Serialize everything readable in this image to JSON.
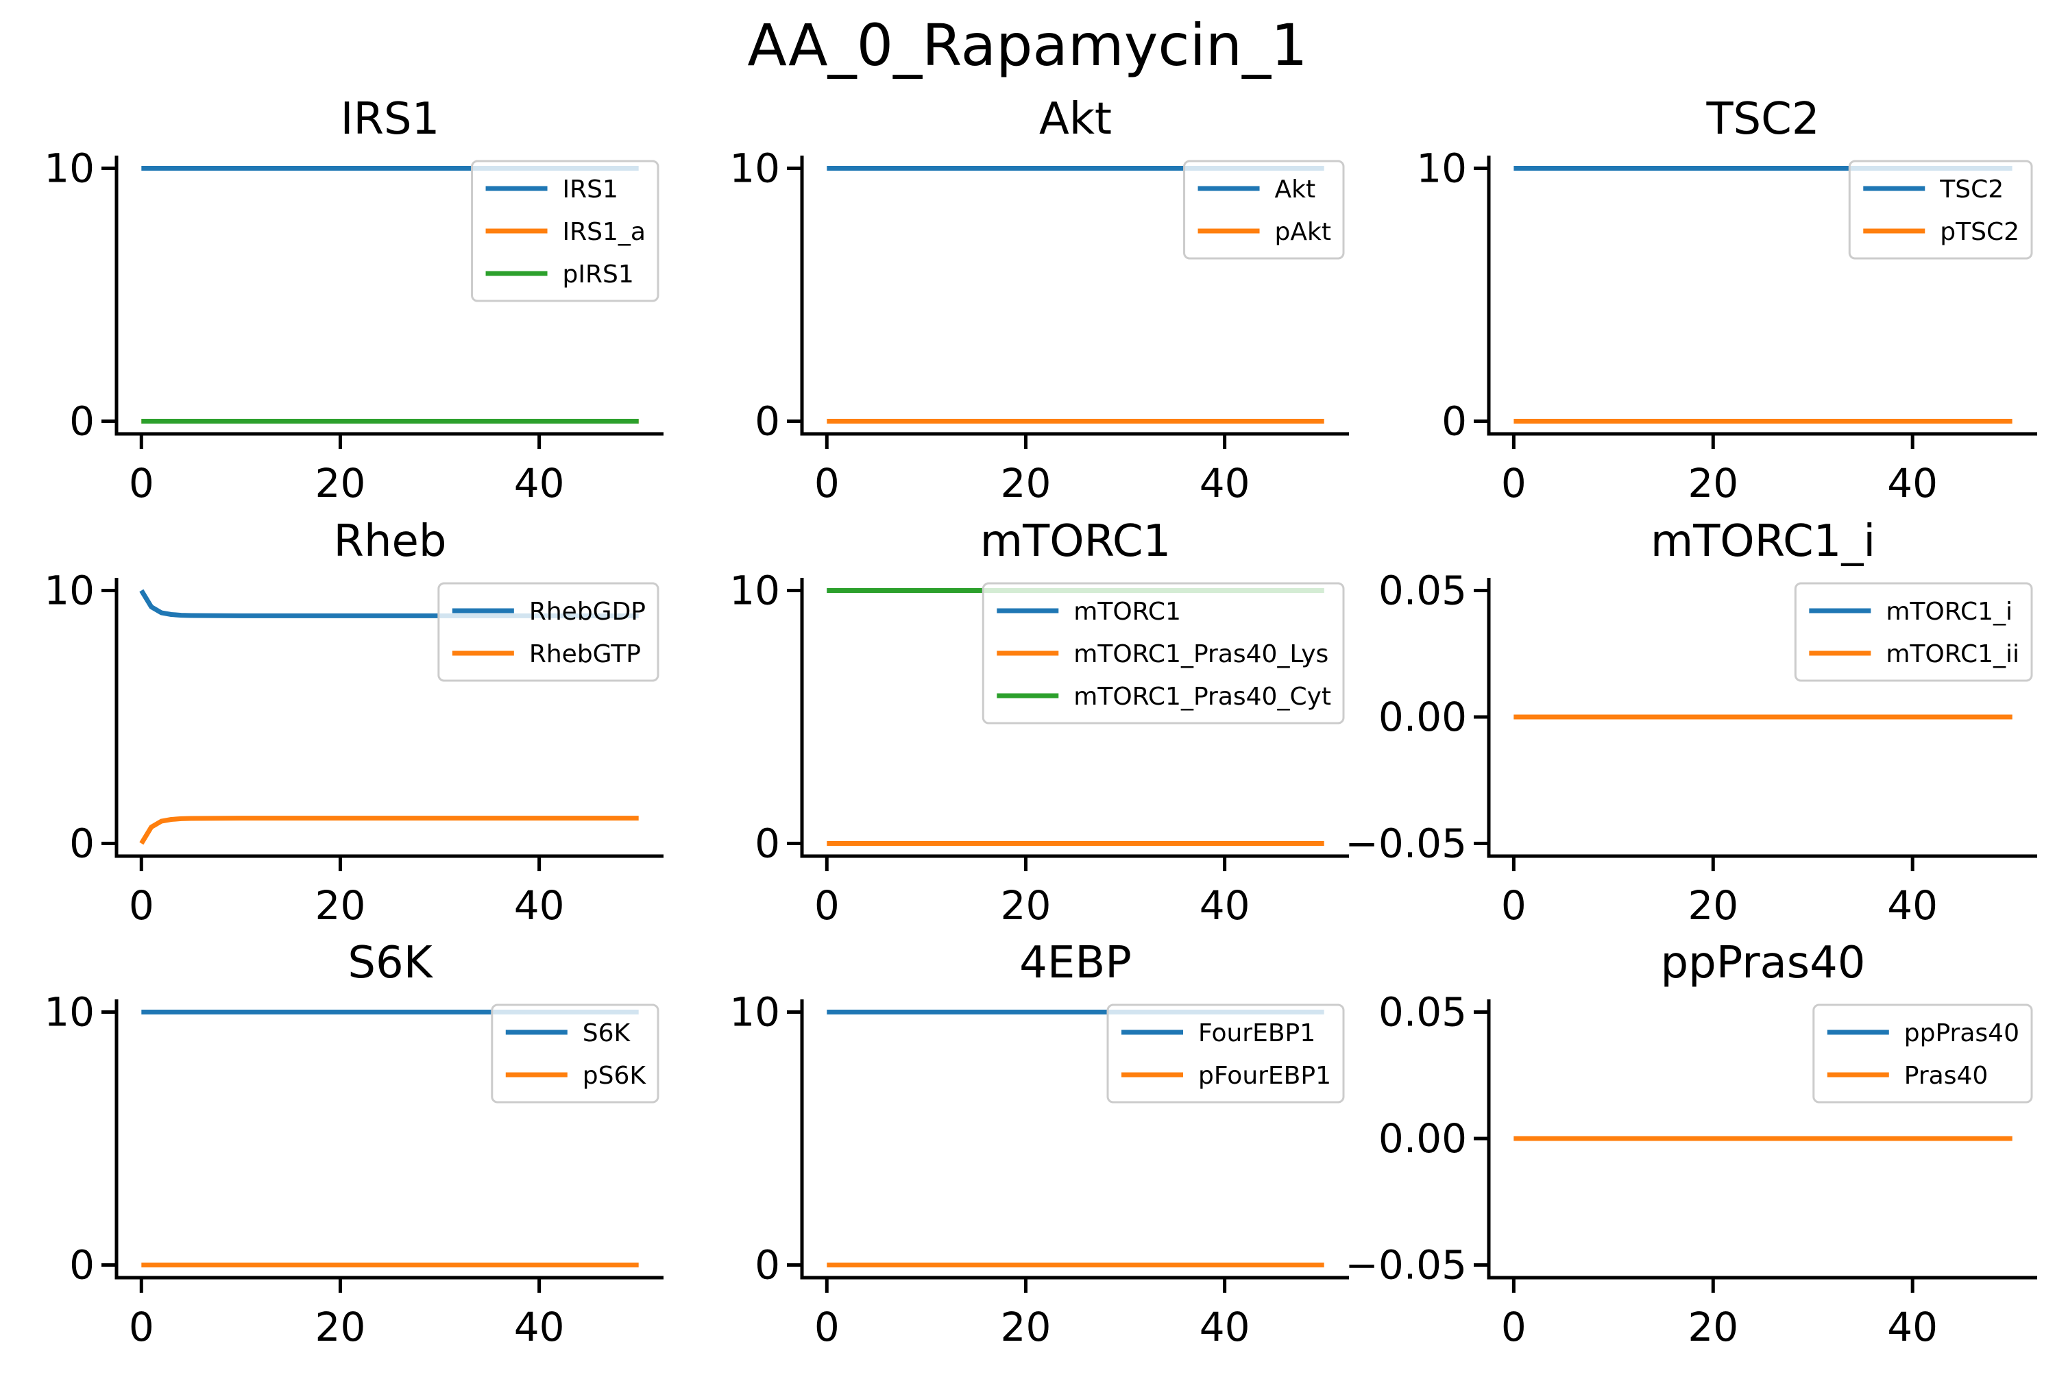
{
  "figure": {
    "suptitle": "AA_0_Rapamycin_1"
  },
  "colors": {
    "c0": "#1f77b4",
    "c1": "#ff7f0e",
    "c2": "#2ca02c"
  },
  "chart_data": [
    {
      "type": "line",
      "title": "IRS1",
      "xlabel": "",
      "ylabel": "",
      "xlim": [
        -2.5,
        52.5
      ],
      "ylim": [
        -0.5,
        10.5
      ],
      "xticks": [
        0,
        20,
        40
      ],
      "yticks": [
        0,
        10
      ],
      "ytick_labels": [
        "0",
        "10"
      ],
      "legend_position": "upper right",
      "grid": false,
      "series": [
        {
          "name": "IRS1",
          "color": "#1f77b4",
          "x": [
            0,
            50
          ],
          "y": [
            10,
            10
          ]
        },
        {
          "name": "IRS1_a",
          "color": "#ff7f0e",
          "x": [
            0,
            50
          ],
          "y": [
            0,
            0
          ]
        },
        {
          "name": "pIRS1",
          "color": "#2ca02c",
          "x": [
            0,
            50
          ],
          "y": [
            0,
            0
          ]
        }
      ]
    },
    {
      "type": "line",
      "title": "Akt",
      "xlabel": "",
      "ylabel": "",
      "xlim": [
        -2.5,
        52.5
      ],
      "ylim": [
        -0.5,
        10.5
      ],
      "xticks": [
        0,
        20,
        40
      ],
      "yticks": [
        0,
        10
      ],
      "ytick_labels": [
        "0",
        "10"
      ],
      "legend_position": "upper right",
      "grid": false,
      "series": [
        {
          "name": "Akt",
          "color": "#1f77b4",
          "x": [
            0,
            50
          ],
          "y": [
            10,
            10
          ]
        },
        {
          "name": "pAkt",
          "color": "#ff7f0e",
          "x": [
            0,
            50
          ],
          "y": [
            0,
            0
          ]
        }
      ]
    },
    {
      "type": "line",
      "title": "TSC2",
      "xlabel": "",
      "ylabel": "",
      "xlim": [
        -2.5,
        52.5
      ],
      "ylim": [
        -0.5,
        10.5
      ],
      "xticks": [
        0,
        20,
        40
      ],
      "yticks": [
        0,
        10
      ],
      "ytick_labels": [
        "0",
        "10"
      ],
      "legend_position": "upper right",
      "grid": false,
      "series": [
        {
          "name": "TSC2",
          "color": "#1f77b4",
          "x": [
            0,
            50
          ],
          "y": [
            10,
            10
          ]
        },
        {
          "name": "pTSC2",
          "color": "#ff7f0e",
          "x": [
            0,
            50
          ],
          "y": [
            0,
            0
          ]
        }
      ]
    },
    {
      "type": "line",
      "title": "Rheb",
      "xlabel": "",
      "ylabel": "",
      "xlim": [
        -2.5,
        52.5
      ],
      "ylim": [
        -0.5,
        10.5
      ],
      "xticks": [
        0,
        20,
        40
      ],
      "yticks": [
        0,
        10
      ],
      "ytick_labels": [
        "0",
        "10"
      ],
      "legend_position": "upper right",
      "grid": false,
      "series": [
        {
          "name": "RhebGDP",
          "color": "#1f77b4",
          "x": [
            0,
            1,
            2,
            3,
            4,
            5,
            10,
            20,
            30,
            40,
            50
          ],
          "y": [
            10,
            9.35,
            9.12,
            9.05,
            9.02,
            9.01,
            9.0,
            9.0,
            9.0,
            9.0,
            9.0
          ]
        },
        {
          "name": "RhebGTP",
          "color": "#ff7f0e",
          "x": [
            0,
            1,
            2,
            3,
            4,
            5,
            10,
            20,
            30,
            40,
            50
          ],
          "y": [
            0,
            0.65,
            0.88,
            0.95,
            0.98,
            0.99,
            1.0,
            1.0,
            1.0,
            1.0,
            1.0
          ]
        }
      ]
    },
    {
      "type": "line",
      "title": "mTORC1",
      "xlabel": "",
      "ylabel": "",
      "xlim": [
        -2.5,
        52.5
      ],
      "ylim": [
        -0.5,
        10.5
      ],
      "xticks": [
        0,
        20,
        40
      ],
      "yticks": [
        0,
        10
      ],
      "ytick_labels": [
        "0",
        "10"
      ],
      "legend_position": "upper right",
      "grid": false,
      "series": [
        {
          "name": "mTORC1",
          "color": "#1f77b4",
          "x": [
            0,
            50
          ],
          "y": [
            10,
            10
          ]
        },
        {
          "name": "mTORC1_Pras40_Lys",
          "color": "#ff7f0e",
          "x": [
            0,
            50
          ],
          "y": [
            0,
            0
          ]
        },
        {
          "name": "mTORC1_Pras40_Cyt",
          "color": "#2ca02c",
          "x": [
            0,
            50
          ],
          "y": [
            10,
            10
          ]
        }
      ]
    },
    {
      "type": "line",
      "title": "mTORC1_i",
      "xlabel": "",
      "ylabel": "",
      "xlim": [
        -2.5,
        52.5
      ],
      "ylim": [
        -0.055,
        0.055
      ],
      "xticks": [
        0,
        20,
        40
      ],
      "yticks": [
        -0.05,
        0,
        0.05
      ],
      "ytick_labels": [
        "−0.05",
        "0.00",
        "0.05"
      ],
      "legend_position": "upper right",
      "grid": false,
      "series": [
        {
          "name": "mTORC1_i",
          "color": "#1f77b4",
          "x": [
            0,
            50
          ],
          "y": [
            0,
            0
          ]
        },
        {
          "name": "mTORC1_ii",
          "color": "#ff7f0e",
          "x": [
            0,
            50
          ],
          "y": [
            0,
            0
          ]
        }
      ]
    },
    {
      "type": "line",
      "title": "S6K",
      "xlabel": "",
      "ylabel": "",
      "xlim": [
        -2.5,
        52.5
      ],
      "ylim": [
        -0.5,
        10.5
      ],
      "xticks": [
        0,
        20,
        40
      ],
      "yticks": [
        0,
        10
      ],
      "ytick_labels": [
        "0",
        "10"
      ],
      "legend_position": "upper right",
      "grid": false,
      "series": [
        {
          "name": "S6K",
          "color": "#1f77b4",
          "x": [
            0,
            50
          ],
          "y": [
            10,
            10
          ]
        },
        {
          "name": "pS6K",
          "color": "#ff7f0e",
          "x": [
            0,
            50
          ],
          "y": [
            0,
            0
          ]
        }
      ]
    },
    {
      "type": "line",
      "title": "4EBP",
      "xlabel": "",
      "ylabel": "",
      "xlim": [
        -2.5,
        52.5
      ],
      "ylim": [
        -0.5,
        10.5
      ],
      "xticks": [
        0,
        20,
        40
      ],
      "yticks": [
        0,
        10
      ],
      "ytick_labels": [
        "0",
        "10"
      ],
      "legend_position": "upper right",
      "grid": false,
      "series": [
        {
          "name": "FourEBP1",
          "color": "#1f77b4",
          "x": [
            0,
            50
          ],
          "y": [
            10,
            10
          ]
        },
        {
          "name": "pFourEBP1",
          "color": "#ff7f0e",
          "x": [
            0,
            50
          ],
          "y": [
            0,
            0
          ]
        }
      ]
    },
    {
      "type": "line",
      "title": "ppPras40",
      "xlabel": "",
      "ylabel": "",
      "xlim": [
        -2.5,
        52.5
      ],
      "ylim": [
        -0.055,
        0.055
      ],
      "xticks": [
        0,
        20,
        40
      ],
      "yticks": [
        -0.05,
        0,
        0.05
      ],
      "ytick_labels": [
        "−0.05",
        "0.00",
        "0.05"
      ],
      "legend_position": "upper right",
      "grid": false,
      "series": [
        {
          "name": "ppPras40",
          "color": "#1f77b4",
          "x": [
            0,
            50
          ],
          "y": [
            0,
            0
          ]
        },
        {
          "name": "Pras40",
          "color": "#ff7f0e",
          "x": [
            0,
            50
          ],
          "y": [
            0,
            0
          ]
        }
      ]
    }
  ]
}
